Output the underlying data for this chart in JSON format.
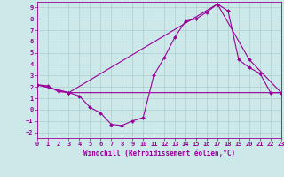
{
  "xlabel": "Windchill (Refroidissement éolien,°C)",
  "bg_color": "#cce8e8",
  "grid_color": "#aacfcf",
  "line_color": "#990099",
  "xlim": [
    0,
    23
  ],
  "ylim": [
    -2.5,
    9.5
  ],
  "xticks": [
    0,
    1,
    2,
    3,
    4,
    5,
    6,
    7,
    8,
    9,
    10,
    11,
    12,
    13,
    14,
    15,
    16,
    17,
    18,
    19,
    20,
    21,
    22,
    23
  ],
  "yticks": [
    -2,
    -1,
    0,
    1,
    2,
    3,
    4,
    5,
    6,
    7,
    8,
    9
  ],
  "line1_x": [
    0,
    1,
    2,
    3,
    4,
    5,
    6,
    7,
    8,
    9,
    10,
    11,
    12,
    13,
    14,
    15,
    16,
    17,
    18,
    19,
    20,
    21,
    22,
    23
  ],
  "line1_y": [
    2.2,
    2.1,
    1.6,
    1.5,
    1.2,
    0.2,
    -0.3,
    -1.3,
    -1.4,
    -1.0,
    -0.7,
    3.0,
    4.6,
    6.4,
    7.8,
    8.0,
    8.6,
    9.3,
    8.7,
    4.4,
    3.7,
    3.2,
    1.5,
    1.5
  ],
  "line2_x": [
    0,
    3,
    23
  ],
  "line2_y": [
    2.2,
    1.5,
    1.5
  ],
  "line3_x": [
    0,
    3,
    17,
    20,
    23
  ],
  "line3_y": [
    2.2,
    1.5,
    9.3,
    4.4,
    1.5
  ],
  "tick_fontsize": 5.0,
  "xlabel_fontsize": 5.5,
  "marker_size": 2.0,
  "line_width": 0.8
}
